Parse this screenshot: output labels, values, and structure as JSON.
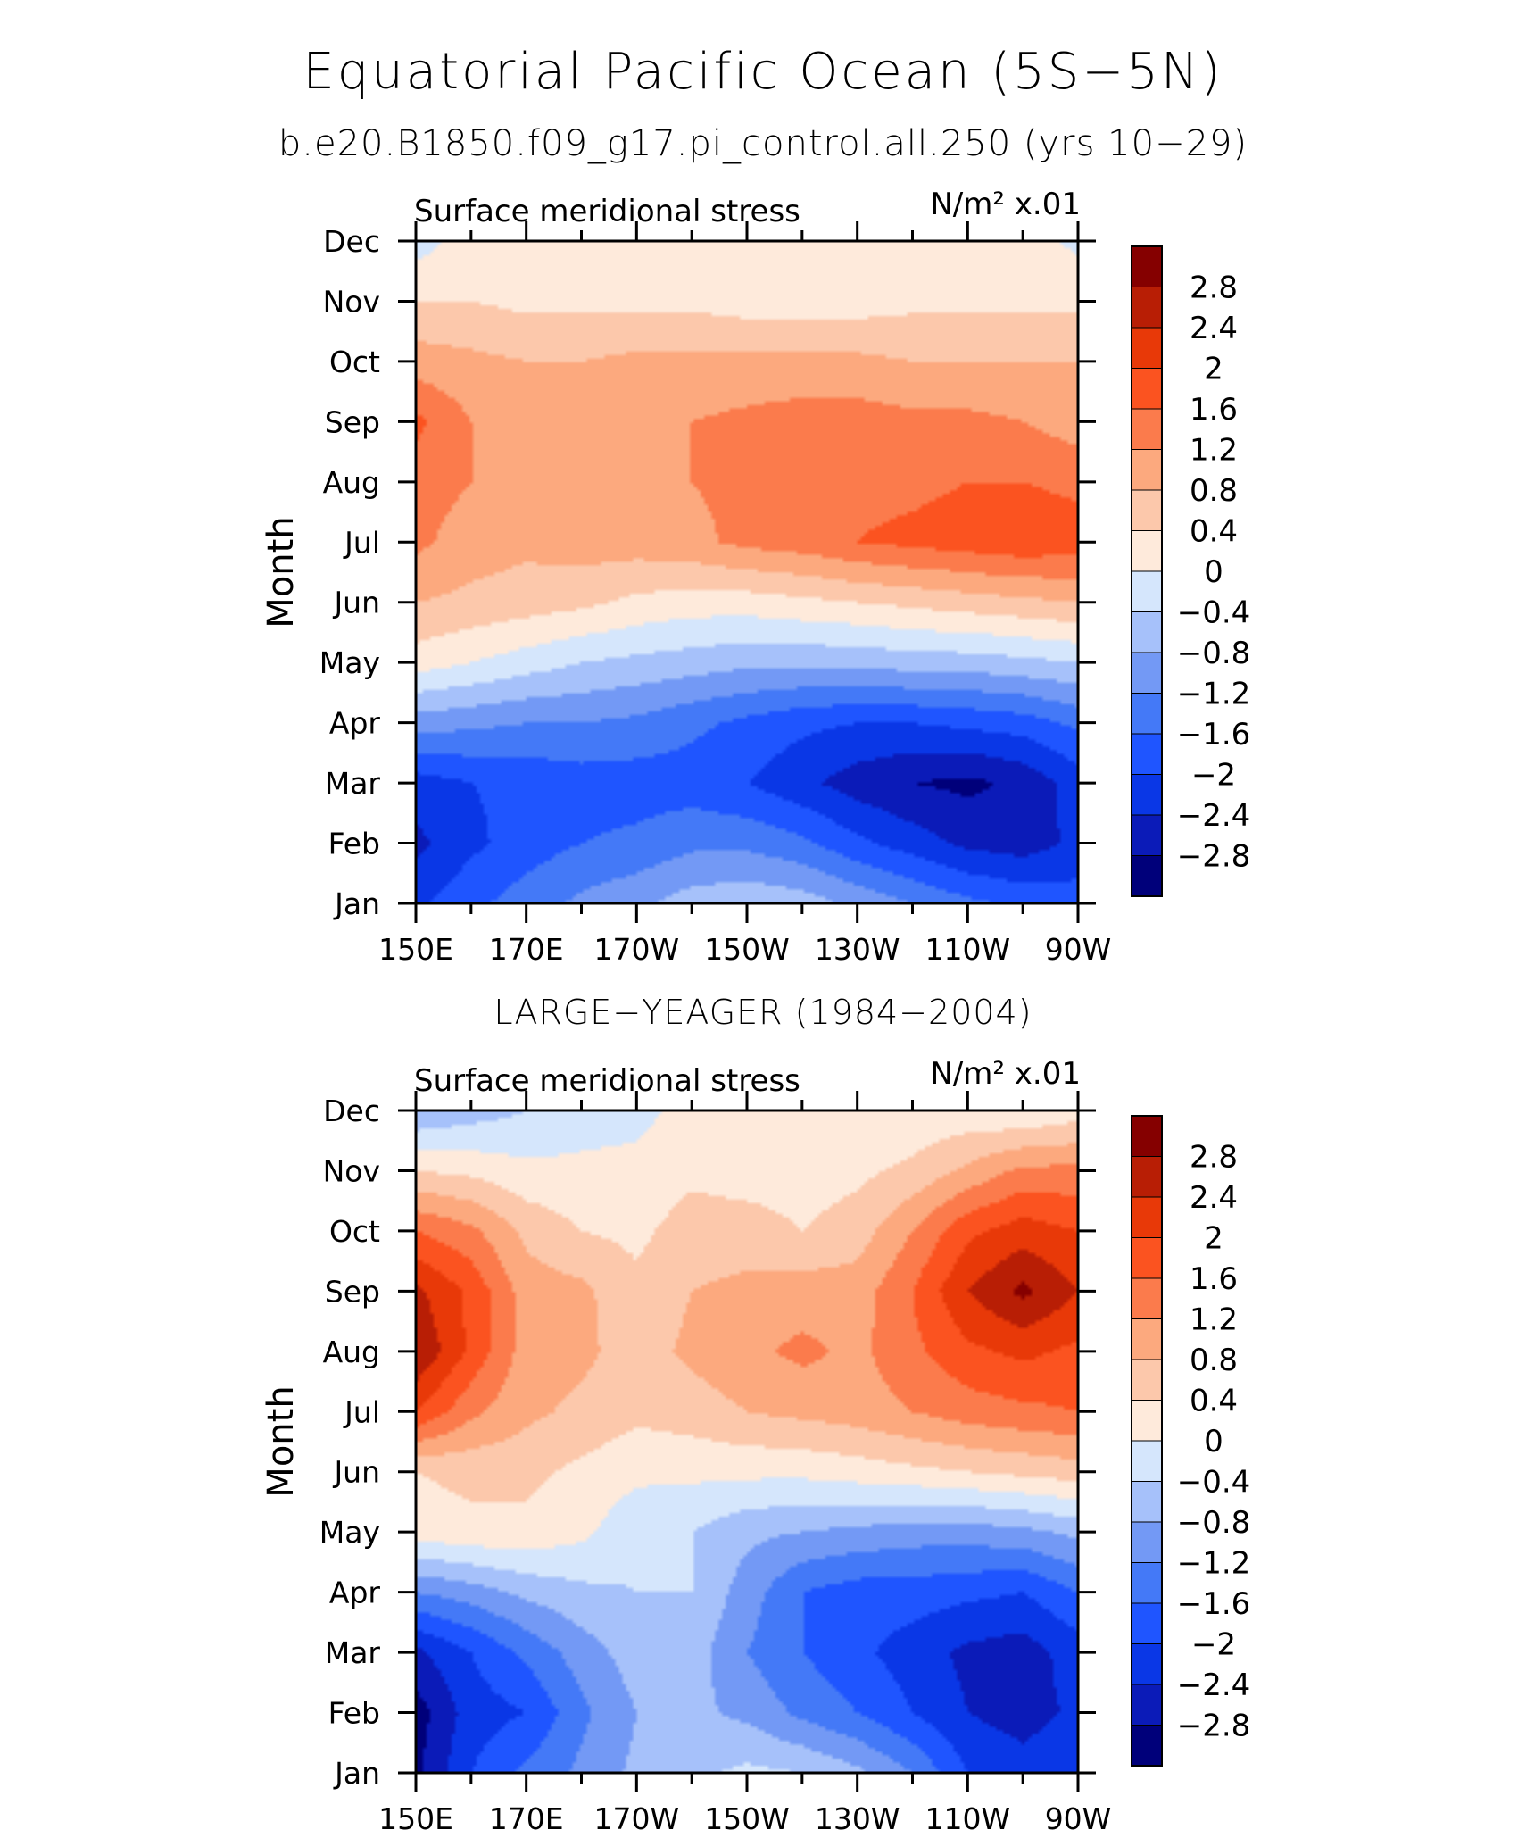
{
  "title": "Equatorial Pacific Ocean (5S−5N)",
  "subtitle": "b.e20.B1850.f09_g17.pi_control.all.250 (yrs 10−29)",
  "chart_data": [
    {
      "type": "heatmap",
      "title": "",
      "variable": "Surface meridional stress",
      "units": "N/m² x.01",
      "ylabel": "Month",
      "x_ticks": [
        "150E",
        "170E",
        "170W",
        "150W",
        "130W",
        "110W",
        "90W"
      ],
      "x_lon": [
        150,
        170,
        190,
        210,
        230,
        250,
        270
      ],
      "months": [
        "Jan",
        "Feb",
        "Mar",
        "Apr",
        "May",
        "Jun",
        "Jul",
        "Aug",
        "Sep",
        "Oct",
        "Nov",
        "Dec"
      ],
      "levels": [
        -2.8,
        -2.4,
        -2,
        -1.6,
        -1.2,
        -0.8,
        -0.4,
        0,
        0.4,
        0.8,
        1.2,
        1.6,
        2,
        2.4,
        2.8
      ],
      "colorbar_labels": [
        "2.8",
        "2.4",
        "2",
        "1.6",
        "1.2",
        "0.8",
        "0.4",
        "0",
        "−0.4",
        "−0.8",
        "−1.2",
        "−1.6",
        "−2",
        "−2.4",
        "−2.8"
      ],
      "colors": [
        "#00007a",
        "#0b1bb8",
        "#0a37e6",
        "#1f55ff",
        "#4479f7",
        "#7399f5",
        "#a6c1fa",
        "#d5e6fc",
        "#feeadb",
        "#fcc8ab",
        "#fca97e",
        "#fb7b4c",
        "#fb5320",
        "#e83908",
        "#b81e05",
        "#850000"
      ],
      "grid_lon": [
        150,
        160,
        170,
        180,
        190,
        200,
        210,
        220,
        230,
        240,
        250,
        260,
        270
      ],
      "z": [
        [
          -2.1,
          -1.7,
          -1.4,
          -1.1,
          -0.9,
          -0.6,
          -0.5,
          -0.6,
          -0.9,
          -1.2,
          -1.5,
          -1.7,
          -1.8
        ],
        [
          -2.5,
          -2.1,
          -1.8,
          -1.6,
          -1.5,
          -1.3,
          -1.3,
          -1.5,
          -1.9,
          -2.2,
          -2.5,
          -2.6,
          -2.3
        ],
        [
          -2.2,
          -2.0,
          -1.9,
          -1.8,
          -1.8,
          -1.8,
          -2.0,
          -2.3,
          -2.6,
          -2.8,
          -2.9,
          -2.7,
          -2.2
        ],
        [
          -1.0,
          -1.1,
          -1.2,
          -1.2,
          -1.3,
          -1.5,
          -1.7,
          -1.9,
          -2.0,
          -2.0,
          -1.9,
          -1.8,
          -1.5
        ],
        [
          0.2,
          0.0,
          -0.2,
          -0.4,
          -0.5,
          -0.6,
          -0.7,
          -0.7,
          -0.7,
          -0.6,
          -0.6,
          -0.5,
          -0.4
        ],
        [
          0.8,
          0.7,
          0.6,
          0.5,
          0.3,
          0.2,
          0.2,
          0.3,
          0.4,
          0.5,
          0.6,
          0.7,
          0.8
        ],
        [
          1.3,
          1.0,
          0.9,
          1.0,
          1.0,
          1.1,
          1.3,
          1.4,
          1.6,
          1.7,
          1.8,
          1.9,
          1.8
        ],
        [
          1.4,
          1.2,
          1.1,
          1.1,
          1.1,
          1.2,
          1.3,
          1.4,
          1.5,
          1.5,
          1.6,
          1.6,
          1.5
        ],
        [
          1.7,
          1.2,
          1.0,
          1.0,
          1.1,
          1.2,
          1.3,
          1.4,
          1.4,
          1.3,
          1.3,
          1.2,
          1.0
        ],
        [
          1.0,
          0.9,
          0.8,
          0.8,
          0.9,
          0.9,
          0.9,
          0.9,
          0.9,
          0.8,
          0.8,
          0.8,
          0.8
        ],
        [
          0.4,
          0.4,
          0.3,
          0.3,
          0.3,
          0.3,
          0.2,
          0.2,
          0.2,
          0.3,
          0.3,
          0.3,
          0.3
        ],
        [
          -0.2,
          0.2,
          0.2,
          0.2,
          0.3,
          0.3,
          0.3,
          0.3,
          0.3,
          0.3,
          0.3,
          0.2,
          -0.1
        ]
      ]
    },
    {
      "type": "heatmap",
      "title": "LARGE−YEAGER (1984−2004)",
      "variable": "Surface meridional stress",
      "units": "N/m² x.01",
      "ylabel": "Month",
      "x_ticks": [
        "150E",
        "170E",
        "170W",
        "150W",
        "130W",
        "110W",
        "90W"
      ],
      "x_lon": [
        150,
        170,
        190,
        210,
        230,
        250,
        270
      ],
      "months": [
        "Jan",
        "Feb",
        "Mar",
        "Apr",
        "May",
        "Jun",
        "Jul",
        "Aug",
        "Sep",
        "Oct",
        "Nov",
        "Dec"
      ],
      "levels": [
        -2.8,
        -2.4,
        -2,
        -1.6,
        -1.2,
        -0.8,
        -0.4,
        0,
        0.4,
        0.8,
        1.2,
        1.6,
        2,
        2.4,
        2.8
      ],
      "colorbar_labels": [
        "2.8",
        "2.4",
        "2",
        "1.6",
        "1.2",
        "0.8",
        "0.4",
        "0",
        "−0.4",
        "−0.8",
        "−1.2",
        "−1.6",
        "−2",
        "−2.4",
        "−2.8"
      ],
      "colors": [
        "#00007a",
        "#0b1bb8",
        "#0a37e6",
        "#1f55ff",
        "#4479f7",
        "#7399f5",
        "#a6c1fa",
        "#d5e6fc",
        "#feeadb",
        "#fcc8ab",
        "#fca97e",
        "#fb7b4c",
        "#fb5320",
        "#e83908",
        "#b81e05",
        "#850000"
      ],
      "grid_lon": [
        150,
        160,
        170,
        180,
        190,
        200,
        210,
        220,
        230,
        240,
        250,
        260,
        270
      ],
      "z": [
        [
          -2.9,
          -2.0,
          -1.5,
          -1.1,
          -0.7,
          -0.5,
          -0.3,
          -0.4,
          -0.7,
          -1.2,
          -2.0,
          -2.2,
          -2.0
        ],
        [
          -3.0,
          -2.2,
          -2.0,
          -1.3,
          -0.8,
          -0.7,
          -0.9,
          -1.3,
          -1.6,
          -2.0,
          -2.4,
          -2.6,
          -2.3
        ],
        [
          -2.5,
          -2.0,
          -1.5,
          -1.0,
          -0.6,
          -0.6,
          -1.2,
          -1.6,
          -1.9,
          -2.2,
          -2.5,
          -2.6,
          -2.2
        ],
        [
          -1.2,
          -1.0,
          -0.7,
          -0.5,
          -0.4,
          -0.4,
          -1.0,
          -1.6,
          -1.8,
          -1.8,
          -1.9,
          -2.0,
          -1.6
        ],
        [
          0.2,
          0.3,
          0.3,
          0.1,
          -0.3,
          -0.4,
          -0.7,
          -0.8,
          -0.9,
          -1.0,
          -1.0,
          -0.9,
          -0.7
        ],
        [
          0.4,
          0.5,
          0.5,
          0.3,
          0.1,
          0.1,
          0.1,
          0.1,
          0.2,
          0.3,
          0.4,
          0.5,
          0.6
        ],
        [
          2.0,
          1.3,
          0.9,
          0.7,
          0.5,
          0.6,
          0.8,
          0.9,
          1.0,
          1.2,
          1.4,
          1.5,
          1.6
        ],
        [
          2.8,
          1.9,
          1.0,
          0.9,
          0.6,
          0.9,
          1.1,
          1.3,
          1.1,
          1.5,
          1.9,
          2.1,
          1.9
        ],
        [
          2.5,
          1.9,
          1.0,
          0.9,
          0.5,
          0.8,
          0.9,
          1.0,
          1.0,
          1.6,
          2.4,
          2.9,
          2.4
        ],
        [
          1.6,
          1.3,
          0.7,
          0.4,
          0.3,
          0.6,
          0.6,
          0.4,
          0.6,
          1.2,
          1.9,
          2.2,
          2.0
        ],
        [
          0.4,
          0.3,
          0.1,
          0.1,
          0.1,
          0.3,
          0.2,
          0.2,
          0.3,
          0.5,
          0.9,
          1.3,
          1.3
        ],
        [
          -0.8,
          -0.6,
          -0.4,
          -0.2,
          -0.1,
          0.1,
          0.2,
          0.1,
          0.1,
          0.1,
          0.1,
          0.0,
          0.2
        ]
      ]
    }
  ]
}
